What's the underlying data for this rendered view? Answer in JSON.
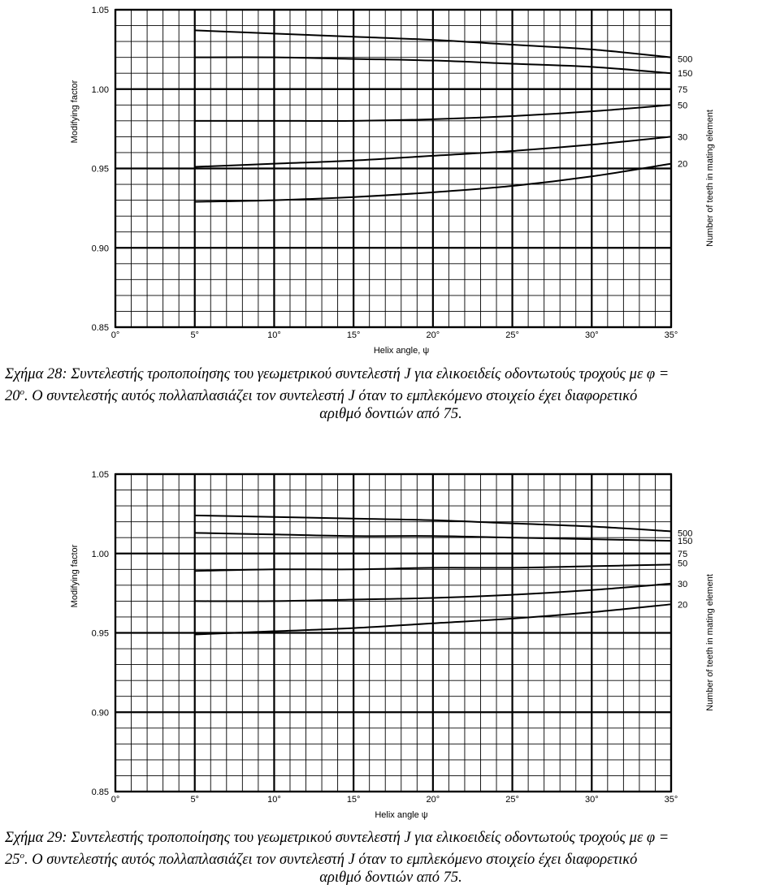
{
  "figures": [
    {
      "chart_data": {
        "type": "line",
        "ylabel": "Modifying factor",
        "xlabel": "Helix angle, ψ",
        "right_label": "Number of teeth in mating element",
        "xlim": [
          0,
          35
        ],
        "ylim": [
          0.85,
          1.05
        ],
        "x_ticks": [
          "0°",
          "5°",
          "10°",
          "15°",
          "20°",
          "25°",
          "30°",
          "35°"
        ],
        "x_tick_values": [
          0,
          5,
          10,
          15,
          20,
          25,
          30,
          35
        ],
        "y_ticks": [
          "0.85",
          "0.90",
          "0.95",
          "1.00",
          "1.05"
        ],
        "y_tick_values": [
          0.85,
          0.9,
          0.95,
          1.0,
          1.05
        ],
        "grid": true,
        "series": [
          {
            "name": "500",
            "x": [
              5,
              10,
              15,
              20,
              25,
              30,
              35
            ],
            "y": [
              1.037,
              1.035,
              1.033,
              1.031,
              1.028,
              1.025,
              1.02
            ]
          },
          {
            "name": "150",
            "x": [
              5,
              10,
              15,
              20,
              25,
              30,
              35
            ],
            "y": [
              1.02,
              1.02,
              1.019,
              1.018,
              1.016,
              1.014,
              1.01
            ]
          },
          {
            "name": "75",
            "x": [
              5,
              35
            ],
            "y": [
              1.0,
              1.0
            ]
          },
          {
            "name": "50",
            "x": [
              5,
              10,
              15,
              20,
              25,
              30,
              35
            ],
            "y": [
              0.98,
              0.98,
              0.98,
              0.981,
              0.983,
              0.986,
              0.99
            ]
          },
          {
            "name": "30",
            "x": [
              5,
              10,
              15,
              20,
              25,
              30,
              35
            ],
            "y": [
              0.951,
              0.953,
              0.955,
              0.958,
              0.961,
              0.965,
              0.97
            ]
          },
          {
            "name": "20",
            "x": [
              5,
              10,
              15,
              20,
              25,
              30,
              35
            ],
            "y": [
              0.929,
              0.93,
              0.932,
              0.935,
              0.939,
              0.945,
              0.953
            ]
          }
        ],
        "right_labels": [
          {
            "text": "500",
            "y": 1.019
          },
          {
            "text": "150",
            "y": 1.01
          },
          {
            "text": "75",
            "y": 1.0
          },
          {
            "text": "50",
            "y": 0.99
          },
          {
            "text": "30",
            "y": 0.97
          },
          {
            "text": "20",
            "y": 0.953
          }
        ]
      },
      "caption": {
        "line1": "Σχήμα 28: Συντελεστής τροποποίησης του γεωμετρικού συντελεστή J για ελικοειδείς οδοντωτούς τροχούς με φ =",
        "line2_a": "20",
        "line2_sup": "o",
        "line2_b": ". O συντελεστής αυτός πολλαπλασιάζει τον συντελεστή J όταν το εμπλεκόμενο στοιχείο έχει διαφορετικό",
        "line3": "αριθμό δοντιών από 75."
      }
    },
    {
      "chart_data": {
        "type": "line",
        "ylabel": "Modifying factor",
        "xlabel": "Helix angle ψ",
        "right_label": "Number of teeth in mating element",
        "xlim": [
          0,
          35
        ],
        "ylim": [
          0.85,
          1.05
        ],
        "x_ticks": [
          "0°",
          "5°",
          "10°",
          "15°",
          "20°",
          "25°",
          "30°",
          "35°"
        ],
        "x_tick_values": [
          0,
          5,
          10,
          15,
          20,
          25,
          30,
          35
        ],
        "y_ticks": [
          "0.85",
          "0.90",
          "0.95",
          "1.00",
          "1.05"
        ],
        "y_tick_values": [
          0.85,
          0.9,
          0.95,
          1.0,
          1.05
        ],
        "grid": true,
        "series": [
          {
            "name": "500",
            "x": [
              5,
              10,
              15,
              20,
              25,
              30,
              35
            ],
            "y": [
              1.024,
              1.023,
              1.022,
              1.021,
              1.019,
              1.017,
              1.014
            ]
          },
          {
            "name": "150",
            "x": [
              5,
              10,
              15,
              20,
              25,
              30,
              35
            ],
            "y": [
              1.013,
              1.012,
              1.011,
              1.011,
              1.01,
              1.009,
              1.008
            ]
          },
          {
            "name": "75",
            "x": [
              5,
              35
            ],
            "y": [
              1.0,
              1.0
            ]
          },
          {
            "name": "50",
            "x": [
              5,
              10,
              15,
              20,
              25,
              30,
              35
            ],
            "y": [
              0.989,
              0.99,
              0.99,
              0.991,
              0.991,
              0.992,
              0.993
            ]
          },
          {
            "name": "30",
            "x": [
              5,
              10,
              15,
              20,
              25,
              30,
              35
            ],
            "y": [
              0.97,
              0.97,
              0.971,
              0.972,
              0.974,
              0.977,
              0.981
            ]
          },
          {
            "name": "20",
            "x": [
              5,
              10,
              15,
              20,
              25,
              30,
              35
            ],
            "y": [
              0.949,
              0.951,
              0.953,
              0.956,
              0.959,
              0.963,
              0.968
            ]
          }
        ],
        "right_labels": [
          {
            "text": "500",
            "y": 1.013
          },
          {
            "text": "150",
            "y": 1.008
          },
          {
            "text": "75",
            "y": 1.0
          },
          {
            "text": "50",
            "y": 0.994
          },
          {
            "text": "30",
            "y": 0.981
          },
          {
            "text": "20",
            "y": 0.968
          }
        ]
      },
      "caption": {
        "line1": "Σχήμα 29: Συντελεστής τροποποίησης του γεωμετρικού συντελεστή J για ελικοειδείς οδοντωτούς τροχούς με φ =",
        "line2_a": "25",
        "line2_sup": "o",
        "line2_b": ". O συντελεστής αυτός πολλαπλασιάζει τον συντελεστή J όταν το εμπλεκόμενο στοιχείο έχει διαφορετικό",
        "line3": "αριθμό δοντιών από 75."
      }
    }
  ]
}
